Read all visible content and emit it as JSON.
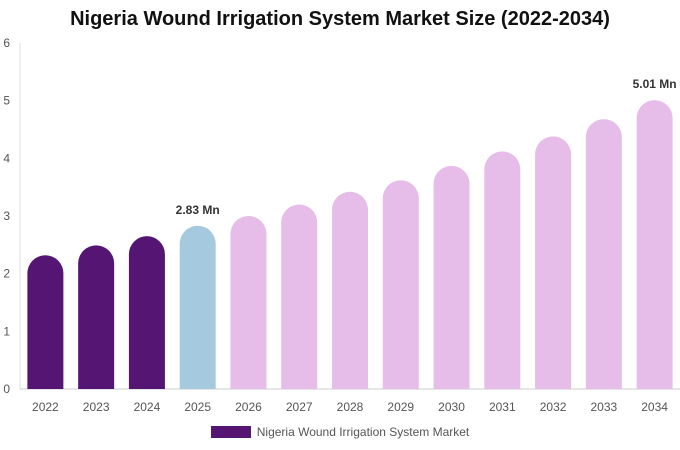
{
  "chart_data": {
    "type": "bar",
    "title": "Nigeria Wound Irrigation System Market Size (2022-2034)",
    "categories": [
      "2022",
      "2023",
      "2024",
      "2025",
      "2026",
      "2027",
      "2028",
      "2029",
      "2030",
      "2031",
      "2032",
      "2033",
      "2034"
    ],
    "series": [
      {
        "name": "Nigeria Wound Irrigation System Market",
        "values": [
          2.32,
          2.49,
          2.65,
          2.83,
          3.0,
          3.2,
          3.42,
          3.62,
          3.87,
          4.12,
          4.38,
          4.68,
          5.01
        ]
      }
    ],
    "data_labels": [
      {
        "category": "2025",
        "text": "2.83 Mn"
      },
      {
        "category": "2034",
        "text": "5.01 Mn"
      }
    ],
    "ylim": [
      0,
      6
    ],
    "yticks": [
      "0",
      "1",
      "2",
      "3",
      "4",
      "5",
      "6"
    ],
    "grid": false,
    "legend_position": "bottom",
    "colors": {
      "historical": "#541573",
      "base_year": "#a5cadf",
      "forecast": "#e6bde8"
    },
    "bar_color_groups": [
      "historical",
      "historical",
      "historical",
      "base_year",
      "forecast",
      "forecast",
      "forecast",
      "forecast",
      "forecast",
      "forecast",
      "forecast",
      "forecast",
      "forecast"
    ]
  }
}
